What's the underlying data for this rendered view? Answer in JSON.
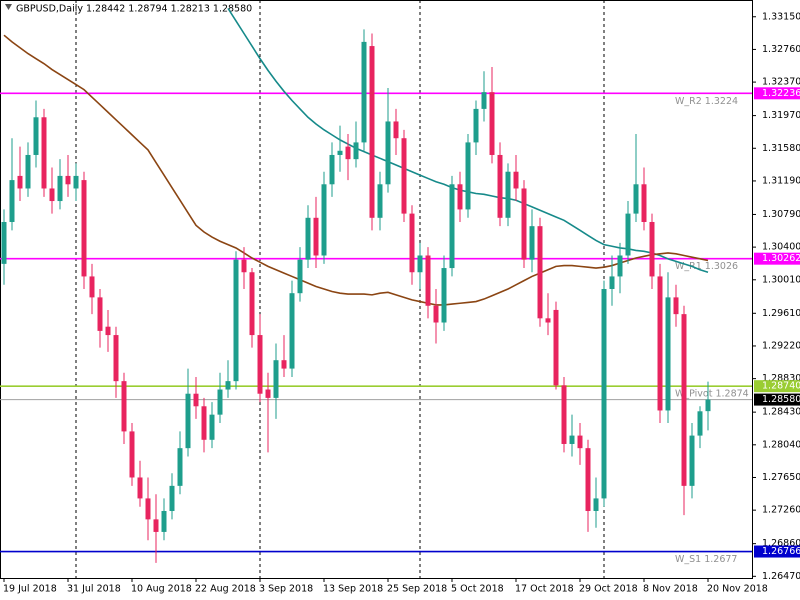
{
  "chart_data": {
    "type": "candlestick",
    "title": "GBPUSD,Daily  1.28442 1.28794 1.28213 1.28580",
    "categories": [
      "19 Jul 2018",
      null,
      null,
      null,
      null,
      null,
      null,
      null,
      "31 Jul 2018",
      null,
      null,
      null,
      null,
      null,
      null,
      null,
      "10 Aug 2018",
      null,
      null,
      null,
      null,
      null,
      null,
      null,
      "22 Aug 2018",
      null,
      null,
      null,
      null,
      null,
      null,
      null,
      "3 Sep 2018",
      null,
      null,
      null,
      null,
      null,
      null,
      null,
      "13 Sep 2018",
      null,
      null,
      null,
      null,
      null,
      null,
      null,
      "25 Sep 2018",
      null,
      null,
      null,
      null,
      null,
      null,
      null,
      "5 Oct 2018",
      null,
      null,
      null,
      null,
      null,
      null,
      null,
      "17 Oct 2018",
      null,
      null,
      null,
      null,
      null,
      null,
      null,
      "29 Oct 2018",
      null,
      null,
      null,
      null,
      null,
      null,
      null,
      "8 Nov 2018",
      null,
      null,
      null,
      null,
      null,
      null,
      null,
      "20 Nov 2018"
    ],
    "open": [
      1.302,
      1.307,
      1.3125,
      1.311,
      1.315,
      1.3195,
      1.311,
      1.3095,
      1.3125,
      1.311,
      1.312,
      1.3005,
      1.298,
      1.2945,
      1.2935,
      1.288,
      1.282,
      1.2765,
      1.274,
      1.2715,
      1.27,
      1.2725,
      1.2755,
      1.28,
      1.2865,
      1.285,
      1.281,
      1.284,
      1.287,
      1.288,
      1.3025,
      1.301,
      1.2935,
      1.287,
      1.286,
      1.2905,
      1.2895,
      1.2985,
      1.3025,
      1.3075,
      1.303,
      1.3115,
      1.315,
      1.316,
      1.3145,
      1.3165,
      1.328,
      1.3075,
      1.3115,
      1.319,
      1.317,
      1.308,
      1.301,
      1.303,
      1.297,
      1.295,
      1.3015,
      1.3115,
      1.3085,
      1.3165,
      1.3205,
      1.3225,
      1.315,
      1.3075,
      1.313,
      1.311,
      1.3025,
      1.3065,
      1.2955,
      1.2965,
      1.2875,
      1.2805,
      1.2815,
      1.28,
      1.2725,
      1.274,
      1.299,
      1.3005,
      1.303,
      1.308,
      1.3115,
      1.307,
      1.3005,
      1.2845,
      1.298,
      1.296,
      1.2755,
      1.2815,
      1.28442
    ],
    "high": [
      1.3085,
      1.317,
      1.316,
      1.3165,
      1.3215,
      1.3205,
      1.3135,
      1.3145,
      1.315,
      1.314,
      1.313,
      1.302,
      1.299,
      1.2965,
      1.2945,
      1.289,
      1.283,
      1.2785,
      1.2765,
      1.2745,
      1.274,
      1.277,
      1.282,
      1.2895,
      1.2885,
      1.286,
      1.2855,
      1.289,
      1.2905,
      1.3035,
      1.304,
      1.3015,
      1.296,
      1.289,
      1.2925,
      1.2935,
      1.3,
      1.304,
      1.309,
      1.31,
      1.313,
      1.3165,
      1.3185,
      1.3175,
      1.319,
      1.33,
      1.3295,
      1.313,
      1.323,
      1.3205,
      1.318,
      1.309,
      1.3045,
      1.304,
      1.299,
      1.303,
      1.3125,
      1.313,
      1.3175,
      1.3215,
      1.325,
      1.3255,
      1.3165,
      1.314,
      1.315,
      1.312,
      1.3085,
      1.3075,
      1.2985,
      1.2975,
      1.2885,
      1.284,
      1.283,
      1.281,
      1.2765,
      1.3,
      1.303,
      1.3045,
      1.3095,
      1.3175,
      1.3135,
      1.308,
      1.302,
      1.301,
      1.2995,
      1.297,
      1.283,
      1.285,
      1.28794
    ],
    "low": [
      1.2995,
      1.306,
      1.3095,
      1.31,
      1.3135,
      1.31,
      1.308,
      1.3085,
      1.31,
      1.3095,
      1.299,
      1.296,
      1.292,
      1.2915,
      1.286,
      1.2805,
      1.2755,
      1.273,
      1.269,
      1.2663,
      1.269,
      1.2715,
      1.2745,
      1.279,
      1.2835,
      1.2795,
      1.28,
      1.283,
      1.286,
      1.287,
      1.299,
      1.292,
      1.2855,
      1.2795,
      1.2835,
      1.2885,
      1.2885,
      1.2975,
      1.3015,
      1.3015,
      1.302,
      1.31,
      1.313,
      1.312,
      1.3135,
      1.3155,
      1.306,
      1.306,
      1.3105,
      1.315,
      1.307,
      1.2995,
      1.299,
      1.2955,
      1.2925,
      1.294,
      1.3005,
      1.307,
      1.3075,
      1.315,
      1.319,
      1.314,
      1.3065,
      1.3065,
      1.3095,
      1.3015,
      1.301,
      1.2945,
      1.2935,
      1.287,
      1.2795,
      1.279,
      1.278,
      1.27,
      1.2705,
      1.273,
      1.297,
      1.2985,
      1.302,
      1.307,
      1.306,
      1.299,
      1.283,
      1.283,
      1.2945,
      1.272,
      1.274,
      1.28,
      1.28213
    ],
    "close": [
      1.307,
      1.312,
      1.311,
      1.315,
      1.3195,
      1.311,
      1.3095,
      1.3125,
      1.3115,
      1.3125,
      1.3005,
      1.298,
      1.294,
      1.2935,
      1.288,
      1.282,
      1.2765,
      1.274,
      1.2715,
      1.27,
      1.2725,
      1.2755,
      1.28,
      1.2865,
      1.285,
      1.281,
      1.284,
      1.287,
      1.288,
      1.3025,
      1.301,
      1.2935,
      1.2865,
      1.286,
      1.2905,
      1.2895,
      1.2985,
      1.3025,
      1.3075,
      1.303,
      1.3115,
      1.315,
      1.3155,
      1.3145,
      1.3165,
      1.3285,
      1.3075,
      1.3115,
      1.319,
      1.317,
      1.308,
      1.301,
      1.303,
      1.297,
      1.295,
      1.3015,
      1.3115,
      1.3085,
      1.3165,
      1.3205,
      1.3225,
      1.315,
      1.3075,
      1.313,
      1.311,
      1.3025,
      1.3065,
      1.2955,
      1.295,
      1.2875,
      1.2805,
      1.2815,
      1.28,
      1.2725,
      1.274,
      1.299,
      1.3005,
      1.303,
      1.308,
      1.3115,
      1.307,
      1.3005,
      1.2845,
      1.298,
      1.296,
      1.2755,
      1.2815,
      1.2844,
      1.2858
    ],
    "up_color": "#1e9e8c",
    "down_color": "#e8245f",
    "lines": [
      {
        "color": "#168a8a",
        "values": [
          null,
          null,
          null,
          null,
          null,
          null,
          null,
          null,
          null,
          null,
          null,
          null,
          null,
          null,
          null,
          null,
          null,
          null,
          null,
          null,
          null,
          null,
          null,
          null,
          null,
          null,
          null,
          null,
          1.3325,
          1.331,
          1.3295,
          1.328,
          1.3265,
          1.3251,
          1.3238,
          1.3226,
          1.3215,
          1.3205,
          1.3195,
          1.3187,
          1.318,
          1.3174,
          1.3168,
          1.3163,
          1.3158,
          1.3154,
          1.315,
          1.3146,
          1.3142,
          1.3138,
          1.3134,
          1.313,
          1.3126,
          1.3122,
          1.3118,
          1.3115,
          1.3111,
          1.3108,
          1.3106,
          1.3104,
          1.3103,
          1.3101,
          1.3099,
          1.3098,
          1.3096,
          1.3092,
          1.3088,
          1.3084,
          1.308,
          1.3076,
          1.3072,
          1.3066,
          1.306,
          1.3054,
          1.3048,
          1.3043,
          1.3041,
          1.3039,
          1.3038,
          1.3036,
          1.3035,
          1.3033,
          1.303,
          1.3026,
          1.3023,
          1.302,
          1.3017,
          1.3013,
          1.301
        ]
      },
      {
        "color": "#8b4513",
        "values": [
          1.3293,
          1.3285,
          1.3278,
          1.3271,
          1.3265,
          1.3259,
          1.3252,
          1.3246,
          1.324,
          1.3234,
          1.3228,
          1.3219,
          1.321,
          1.3201,
          1.3192,
          1.3183,
          1.3174,
          1.3165,
          1.3156,
          1.3141,
          1.3126,
          1.3111,
          1.3096,
          1.3081,
          1.3066,
          1.3058,
          1.3052,
          1.3047,
          1.3043,
          1.3039,
          1.3033,
          1.3027,
          1.3022,
          1.3017,
          1.3013,
          1.3009,
          1.3005,
          1.3001,
          1.2997,
          1.2993,
          1.299,
          1.2987,
          1.2985,
          1.2984,
          1.2984,
          1.2984,
          1.2983,
          1.2985,
          1.2986,
          1.2983,
          1.298,
          1.2977,
          1.2975,
          1.2973,
          1.2971,
          1.2971,
          1.2972,
          1.2973,
          1.2974,
          1.2975,
          1.2978,
          1.2982,
          1.2986,
          1.299,
          1.2995,
          1.3,
          1.3005,
          1.3009,
          1.3013,
          1.3017,
          1.3018,
          1.3018,
          1.3017,
          1.3016,
          1.3015,
          1.3016,
          1.3018,
          1.3021,
          1.3024,
          1.3027,
          1.3029,
          1.3031,
          1.3032,
          1.3033,
          1.3032,
          1.303,
          1.3028,
          1.3026,
          1.3024
        ]
      }
    ],
    "levels": [
      {
        "name": "W_R2 1.3224",
        "value": 1.32236,
        "label": "1.32236",
        "color": "#ff00ff",
        "text_color": "#ffffff"
      },
      {
        "name": "W_R1 1.3026",
        "value": 1.30262,
        "label": "1.30262",
        "color": "#ff00ff",
        "text_color": "#ffffff"
      },
      {
        "name": "W_Pivot 1.2874",
        "value": 1.2874,
        "label": "1.28740",
        "color": "#9acd32",
        "text_color": "#ffffff"
      },
      {
        "name": "W_S1 1.2677",
        "value": 1.26766,
        "label": "1.26766",
        "color": "#0000cd",
        "text_color": "#ffffff"
      }
    ],
    "current_price": {
      "value": 1.2858,
      "label": "1.28580",
      "color": "#a0a0a0"
    },
    "ylim": [
      1.2645,
      1.3335
    ],
    "yticks": [
      {
        "value": 1.3315,
        "label": "1.33150"
      },
      {
        "value": 1.3276,
        "label": "1.32760"
      },
      {
        "value": 1.3237,
        "label": "1.32370"
      },
      {
        "value": 1.3197,
        "label": "1.31970"
      },
      {
        "value": 1.3158,
        "label": "1.31580"
      },
      {
        "value": 1.3119,
        "label": "1.31190"
      },
      {
        "value": 1.3079,
        "label": "1.30790"
      },
      {
        "value": 1.304,
        "label": "1.30400"
      },
      {
        "value": 1.3001,
        "label": "1.30010"
      },
      {
        "value": 1.2961,
        "label": "1.29610"
      },
      {
        "value": 1.2922,
        "label": "1.29220"
      },
      {
        "value": 1.2883,
        "label": "1.28830"
      },
      {
        "value": 1.2843,
        "label": "1.28430"
      },
      {
        "value": 1.2804,
        "label": "1.28040"
      },
      {
        "value": 1.2765,
        "label": "1.27650"
      },
      {
        "value": 1.2726,
        "label": "1.27260"
      },
      {
        "value": 1.2686,
        "label": "1.26860"
      },
      {
        "value": 1.2647,
        "label": "1.26470"
      }
    ]
  }
}
